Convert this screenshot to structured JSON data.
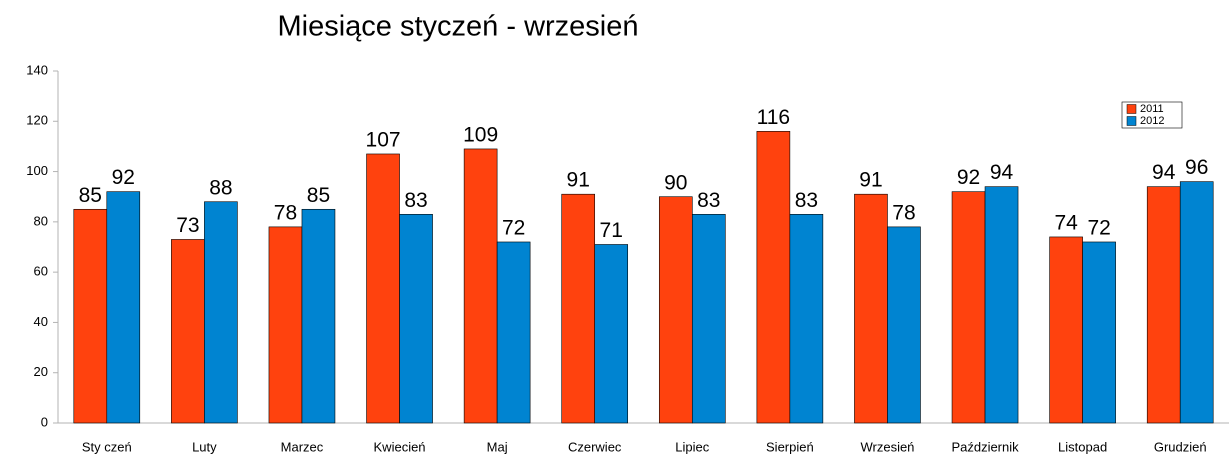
{
  "chart_data": {
    "type": "bar",
    "title": "Miesiące styczeń - wrzesień",
    "categories": [
      "Sty czeń",
      "Luty",
      "Marzec",
      "Kwiecień",
      "Maj",
      "Czerwiec",
      "Lipiec",
      "Sierpień",
      "Wrzesień",
      "Październik",
      "Listopad",
      "Grudzień"
    ],
    "series": [
      {
        "name": "2011",
        "color": "#ff420e",
        "values": [
          85,
          73,
          78,
          107,
          109,
          91,
          90,
          116,
          91,
          92,
          74,
          94
        ]
      },
      {
        "name": "2012",
        "color": "#0084d1",
        "values": [
          92,
          88,
          85,
          83,
          72,
          71,
          83,
          83,
          78,
          94,
          72,
          96
        ]
      }
    ],
    "ylim": [
      0,
      140
    ],
    "yticks": [
      0,
      20,
      40,
      60,
      80,
      100,
      120,
      140
    ],
    "grid": false,
    "legend": "top-right"
  }
}
